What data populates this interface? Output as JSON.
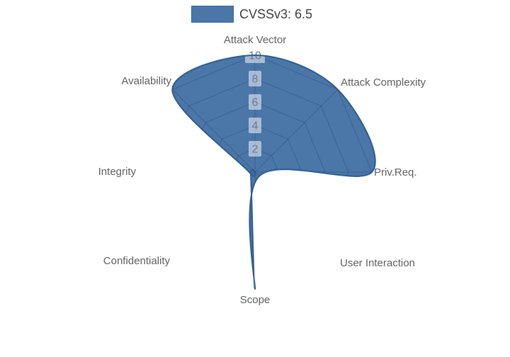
{
  "legend": {
    "label": "CVSSv3: 6.5"
  },
  "chart_data": {
    "type": "radar",
    "title": "",
    "categories": [
      "Attack Vector",
      "Attack Complexity",
      "Priv.Req.",
      "User Interaction",
      "Scope",
      "Confidentiality",
      "Integrity",
      "Availability"
    ],
    "series": [
      {
        "name": "CVSSv3: 6.5",
        "values": [
          10,
          10,
          10,
          0.5,
          10,
          0.5,
          0.5,
          10
        ]
      }
    ],
    "radial_ticks": [
      2,
      4,
      6,
      8,
      10
    ],
    "radial_range": [
      0,
      10
    ],
    "angular_start": "top",
    "direction": "clockwise",
    "grid": true,
    "grid_shape": "polygon",
    "legend_position": "top-center",
    "colors": {
      "fill": "#4a76a8",
      "line": "#2e5d8f",
      "grid": "rgba(25,45,75,0.28)",
      "tick_box": "rgba(255,255,255,0.52)",
      "tick_text": "#6f7c8e",
      "axis_label": "#5f5f5f",
      "legend_text": "#3d3d3d",
      "background": "#ffffff"
    }
  }
}
